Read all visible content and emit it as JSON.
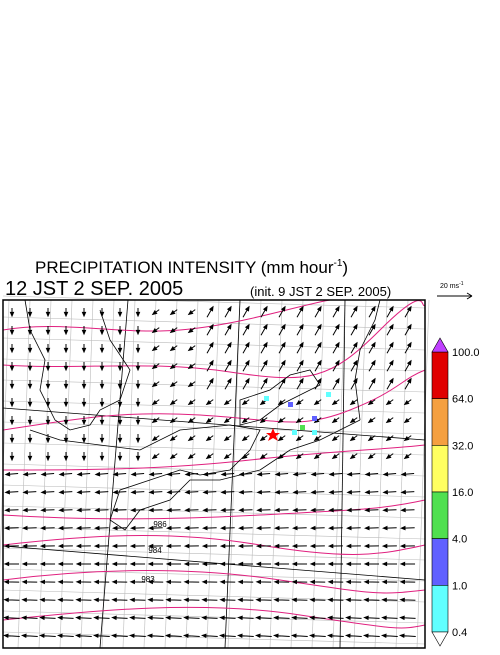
{
  "header": {
    "title": "PRECIPITATION INTENSITY (mm hour",
    "title_exponent": "-1",
    "title_close": ")",
    "valid_time": "12 JST 2 SEP. 2005",
    "init_time": "(init. 9 JST 2 SEP. 2005)"
  },
  "vector_scale": {
    "label": "20 ms",
    "exponent": "-1"
  },
  "colorbar": {
    "levels": [
      {
        "value": 100,
        "label": "100.0"
      },
      {
        "value": 64,
        "label": "64.0"
      },
      {
        "value": 32,
        "label": "32.0"
      },
      {
        "value": 16,
        "label": "16.0"
      },
      {
        "value": 4,
        "label": "4.0"
      },
      {
        "value": 1,
        "label": "1.0"
      },
      0.4
    ],
    "colors": [
      "#e00000",
      "#f5a040",
      "#ffff60",
      "#50e050",
      "#6060ff",
      "#60ffff"
    ],
    "over_color": "#c040ff",
    "under_color": "#ffffff"
  },
  "contour_labels": [
    "986",
    "984",
    "983"
  ]
}
